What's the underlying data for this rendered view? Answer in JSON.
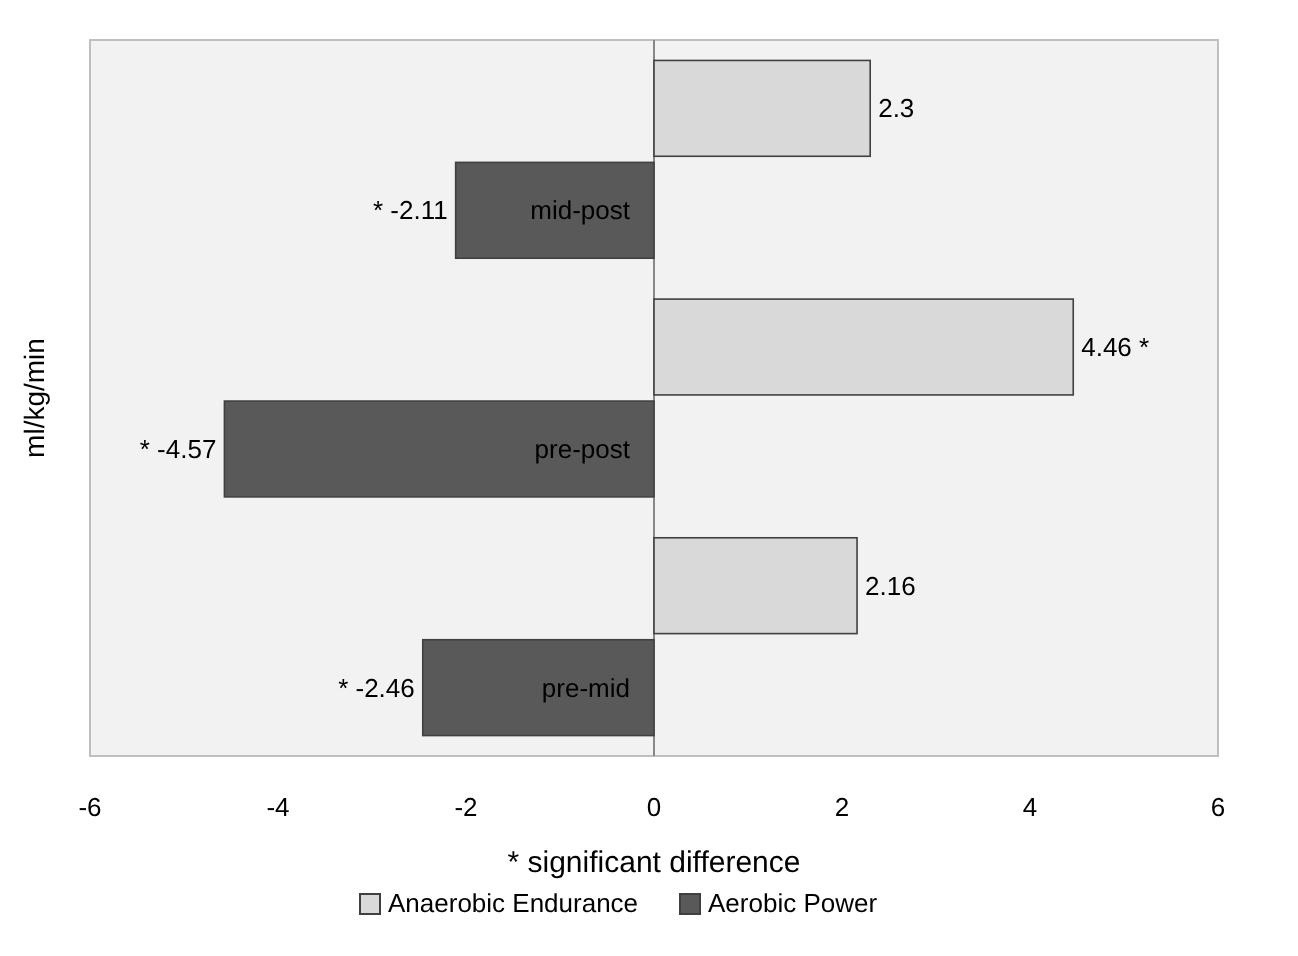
{
  "chart_data": {
    "type": "bar",
    "orientation": "horizontal",
    "ylabel": "ml/kg/min",
    "xlabel": "* significant difference",
    "categories": [
      "mid-post",
      "pre-post",
      "pre-mid"
    ],
    "series": [
      {
        "name": "Anaerobic Endurance",
        "color": "#d9d9d9",
        "values": [
          2.3,
          4.46,
          2.16
        ],
        "value_labels": [
          "2.3",
          "4.46 *",
          "2.16"
        ]
      },
      {
        "name": "Aerobic Power",
        "color": "#595959",
        "values": [
          -2.11,
          -4.57,
          -2.46
        ],
        "value_labels": [
          "* -2.11",
          "* -4.57",
          "* -2.46"
        ]
      }
    ],
    "xlim": [
      -6,
      6
    ],
    "xticks": [
      -6,
      -4,
      -2,
      0,
      2,
      4,
      6
    ],
    "grid": false,
    "legend": "bottom"
  }
}
